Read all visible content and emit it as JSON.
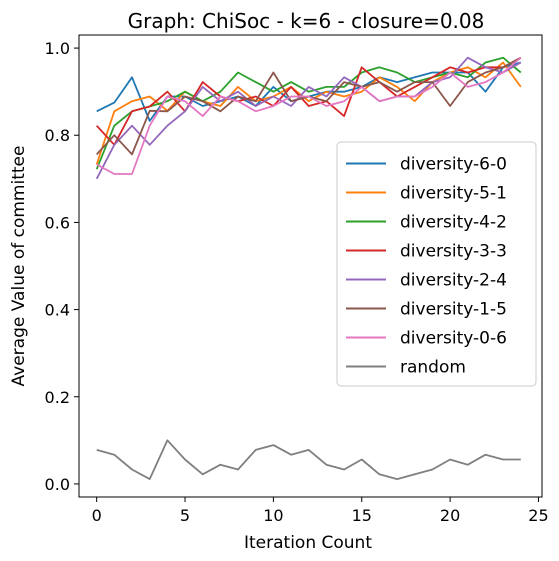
{
  "chart_data": {
    "type": "line",
    "title": "Graph: ChiSoc - k=6 - closure=0.08",
    "xlabel": "Iteration Count",
    "ylabel": "Average Value of committee",
    "xlim": [
      -1,
      25.2
    ],
    "ylim": [
      -0.03,
      1.03
    ],
    "xticks": [
      0,
      5,
      10,
      15,
      20,
      25
    ],
    "yticks": [
      0.0,
      0.2,
      0.4,
      0.6,
      0.8,
      1.0
    ],
    "xtick_labels": [
      "0",
      "5",
      "10",
      "15",
      "20",
      "25"
    ],
    "ytick_labels": [
      "0.0",
      "0.2",
      "0.4",
      "0.6",
      "0.8",
      "1.0"
    ],
    "grid": false,
    "legend_position": "center-right",
    "x": [
      0,
      1,
      2,
      3,
      4,
      5,
      6,
      7,
      8,
      9,
      10,
      11,
      12,
      13,
      14,
      15,
      16,
      17,
      18,
      19,
      20,
      21,
      22,
      23,
      24
    ],
    "series": [
      {
        "name": "diversity-6-0",
        "color": "#1f77b4",
        "values": [
          0.855,
          0.875,
          0.933,
          0.833,
          0.889,
          0.889,
          0.867,
          0.878,
          0.889,
          0.867,
          0.911,
          0.878,
          0.889,
          0.9,
          0.9,
          0.911,
          0.933,
          0.922,
          0.933,
          0.944,
          0.944,
          0.944,
          0.9,
          0.956,
          0.967
        ]
      },
      {
        "name": "diversity-5-1",
        "color": "#ff7f0e",
        "values": [
          0.733,
          0.855,
          0.878,
          0.889,
          0.856,
          0.9,
          0.878,
          0.867,
          0.911,
          0.878,
          0.889,
          0.911,
          0.878,
          0.9,
          0.889,
          0.9,
          0.933,
          0.911,
          0.878,
          0.922,
          0.944,
          0.956,
          0.933,
          0.967,
          0.911
        ]
      },
      {
        "name": "diversity-4-2",
        "color": "#2ca02c",
        "values": [
          0.722,
          0.822,
          0.855,
          0.866,
          0.878,
          0.9,
          0.878,
          0.9,
          0.944,
          0.922,
          0.9,
          0.922,
          0.9,
          0.911,
          0.911,
          0.944,
          0.956,
          0.944,
          0.922,
          0.933,
          0.944,
          0.933,
          0.967,
          0.978,
          0.944
        ]
      },
      {
        "name": "diversity-3-3",
        "color": "#d62728",
        "values": [
          0.822,
          0.778,
          0.855,
          0.866,
          0.9,
          0.855,
          0.922,
          0.889,
          0.878,
          0.889,
          0.867,
          0.911,
          0.867,
          0.878,
          0.844,
          0.956,
          0.922,
          0.889,
          0.911,
          0.933,
          0.956,
          0.944,
          0.956,
          0.956,
          0.978
        ]
      },
      {
        "name": "diversity-2-4",
        "color": "#9467bd",
        "values": [
          0.7,
          0.778,
          0.822,
          0.778,
          0.822,
          0.855,
          0.911,
          0.878,
          0.9,
          0.867,
          0.889,
          0.867,
          0.911,
          0.889,
          0.933,
          0.911,
          0.878,
          0.889,
          0.889,
          0.922,
          0.933,
          0.978,
          0.956,
          0.944,
          0.967
        ]
      },
      {
        "name": "diversity-1-5",
        "color": "#8c564b",
        "values": [
          0.756,
          0.8,
          0.756,
          0.856,
          0.855,
          0.889,
          0.878,
          0.855,
          0.889,
          0.878,
          0.944,
          0.878,
          0.889,
          0.878,
          0.922,
          0.911,
          0.922,
          0.9,
          0.922,
          0.922,
          0.867,
          0.922,
          0.944,
          0.956,
          0.978
        ]
      },
      {
        "name": "diversity-0-6",
        "color": "#e377c2",
        "values": [
          0.733,
          0.711,
          0.711,
          0.822,
          0.889,
          0.878,
          0.844,
          0.889,
          0.878,
          0.855,
          0.867,
          0.889,
          0.889,
          0.867,
          0.878,
          0.911,
          0.878,
          0.889,
          0.889,
          0.911,
          0.944,
          0.911,
          0.922,
          0.944,
          0.978
        ]
      },
      {
        "name": "random",
        "color": "#7f7f7f",
        "values": [
          0.078,
          0.067,
          0.033,
          0.011,
          0.1,
          0.056,
          0.022,
          0.044,
          0.033,
          0.078,
          0.089,
          0.067,
          0.078,
          0.044,
          0.033,
          0.056,
          0.022,
          0.011,
          0.022,
          0.033,
          0.056,
          0.044,
          0.067,
          0.056,
          0.056
        ]
      }
    ]
  }
}
